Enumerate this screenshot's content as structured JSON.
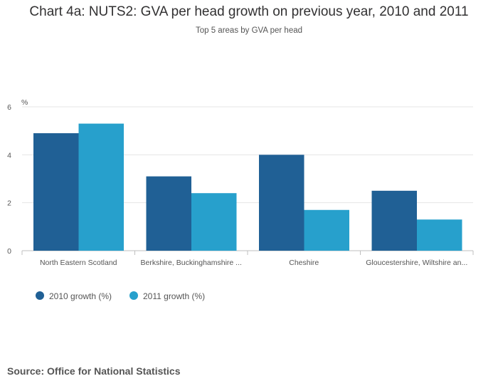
{
  "chart_data": {
    "type": "bar",
    "title": "Chart 4a: NUTS2: GVA per head growth on previous year, 2010 and 2011",
    "subtitle": "Top 5 areas by GVA per head",
    "ylabel": "%",
    "ylim": [
      0,
      6
    ],
    "yticks": [
      "0",
      "2",
      "4",
      "6"
    ],
    "categories": [
      "North Eastern Scotland",
      "Berkshire, Buckinghamshire ...",
      "Cheshire",
      "Gloucestershire, Wiltshire an..."
    ],
    "series": [
      {
        "name": "2010 growth (%)",
        "color": "#206095",
        "values": [
          4.9,
          3.1,
          4.0,
          2.5
        ]
      },
      {
        "name": "2011 growth (%)",
        "color": "#27A0CC",
        "values": [
          5.3,
          2.4,
          1.7,
          1.3
        ]
      }
    ],
    "grid": true,
    "legend_position": "bottom-left"
  },
  "source": "Source: Office for National Statistics"
}
